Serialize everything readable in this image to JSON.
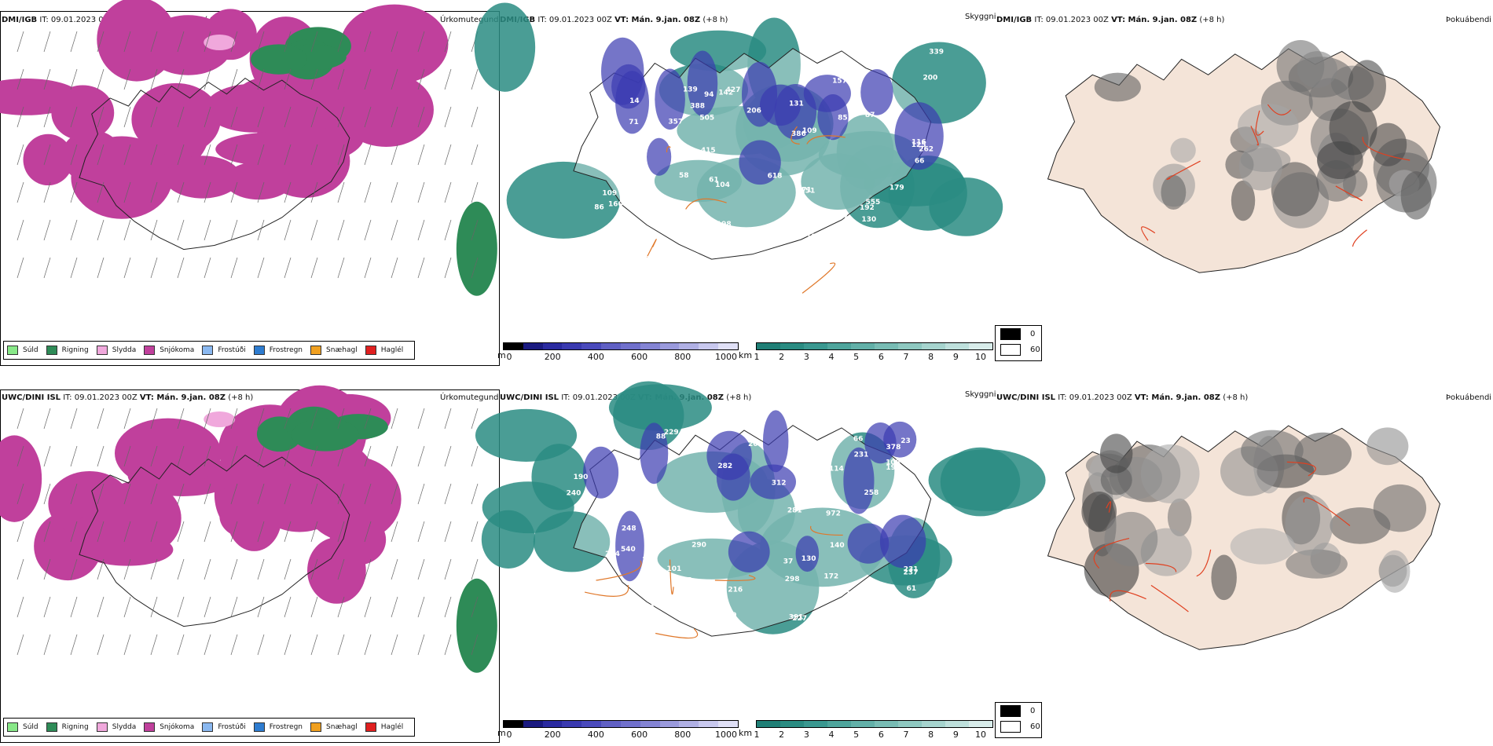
{
  "rows": [
    {
      "header": {
        "model": "DMI/IGB",
        "it": " IT: 09.01.2023 00Z ",
        "vt_label": "VT:",
        "vt": " Mán. 9.jan. 08Z",
        "lead": " (+8 h)"
      },
      "titles": {
        "precip": "Úrkomutegund",
        "vis": "Skyggni",
        "cloud": "Þokuábendi"
      },
      "vis_labels": [
        "198",
        "142",
        "109",
        "171",
        "190",
        "157",
        "179",
        "131",
        "113",
        "304",
        "388",
        "341",
        "187",
        "109",
        "206",
        "151",
        "175",
        "171",
        "19",
        "14",
        "222",
        "86",
        "109",
        "71",
        "58",
        "66",
        "357",
        "371",
        "200",
        "94",
        "61",
        "68",
        "87",
        "116",
        "339",
        "174",
        "618",
        "99",
        "262",
        "386",
        "283",
        "139",
        "427",
        "125",
        "415",
        "505",
        "80",
        "104",
        "42",
        "56",
        "77",
        "22",
        "130",
        "104",
        "71",
        "85",
        "555",
        "192",
        "86",
        "160"
      ],
      "vis_labels_count_note": ""
    },
    {
      "header": {
        "model": "UWC/DINI ISL",
        "it": " IT: 09.01.2023 00Z ",
        "vt_label": "VT:",
        "vt": " Mán. 9.jan. 08Z",
        "lead": " (+8 h)"
      },
      "titles": {
        "precip": "Úrkomutegund",
        "vis": "Skyggni",
        "cloud": "Þokuábendi"
      },
      "vis_labels": [
        "227",
        "101",
        "391",
        "254",
        "248",
        "233",
        "356",
        "281",
        "540",
        "258",
        "61",
        "66",
        "375",
        "320",
        "287",
        "225",
        "208",
        "229",
        "231",
        "216",
        "108",
        "240",
        "299",
        "282",
        "37",
        "157",
        "108",
        "186",
        "237",
        "194",
        "290",
        "972",
        "96",
        "181",
        "190",
        "101",
        "378",
        "204",
        "231",
        "298",
        "140",
        "227",
        "150",
        "172",
        "98",
        "114",
        "312",
        "109",
        "190",
        "130",
        "508",
        "67",
        "88",
        "23"
      ]
    }
  ],
  "precip_legend": [
    {
      "label": "Súld",
      "color": "#88e888"
    },
    {
      "label": "Rigning",
      "color": "#2e8b57"
    },
    {
      "label": "Slydda",
      "color": "#f0a8dc"
    },
    {
      "label": "Snjókoma",
      "color": "#c0409c"
    },
    {
      "label": "Frostúði",
      "color": "#8ab8f0"
    },
    {
      "label": "Frostregn",
      "color": "#2e7cd0"
    },
    {
      "label": "Snæhagl",
      "color": "#f0a020"
    },
    {
      "label": "Haglél",
      "color": "#e02020"
    }
  ],
  "ceiling_scale": {
    "unit": "m",
    "ticks": [
      "0",
      "200",
      "400",
      "600",
      "800",
      "1000"
    ],
    "colors": [
      "#000000",
      "#1a1a80",
      "#2a2aa0",
      "#3a3ab0",
      "#4a4abc",
      "#6060c4",
      "#7070cc",
      "#8484d4",
      "#9a9adc",
      "#b0b0e4",
      "#c8c8ee",
      "#e0e0f6"
    ]
  },
  "vis_scale": {
    "unit": "km",
    "ticks": [
      "1",
      "2",
      "3",
      "4",
      "5",
      "6",
      "7",
      "8",
      "9",
      "10"
    ],
    "colors": [
      "#1f7f76",
      "#2a8c82",
      "#3a9890",
      "#4ea59c",
      "#62b0a8",
      "#78bcb4",
      "#8ec8c0",
      "#a6d4ce",
      "#bee0dc",
      "#d8ecea"
    ]
  },
  "fog_legend": {
    "black_label": "0",
    "white_label": "60"
  },
  "colors": {
    "snow": "#c0409c",
    "rain": "#2e8b57",
    "sleet": "#f0a8dc",
    "teal": "#2a8c82",
    "land": "#f4e4d8",
    "roads": "#e0782a"
  }
}
